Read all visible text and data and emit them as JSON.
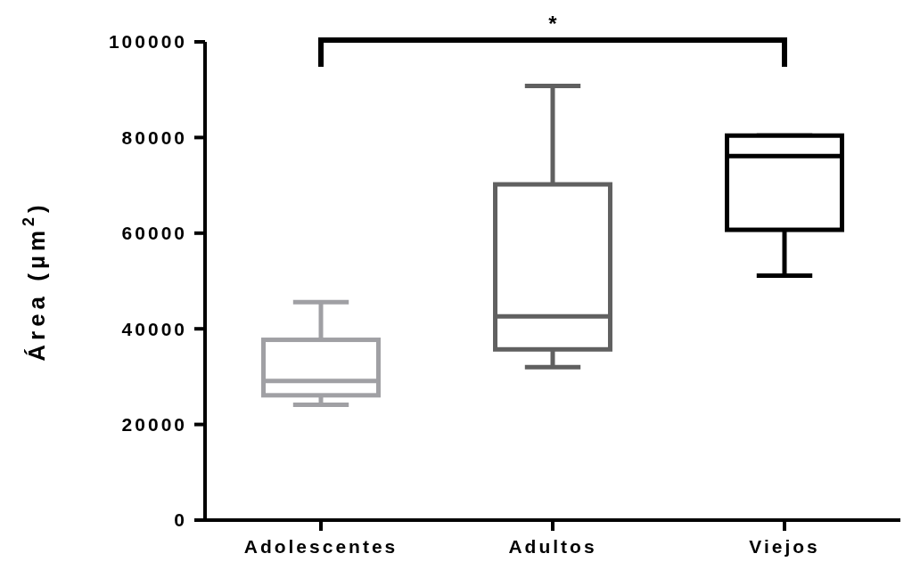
{
  "chart_data": {
    "type": "box",
    "ylabel": "Área (µm$^{2}$)",
    "categories": [
      "Adolescentes",
      "Adultos",
      "Viejos"
    ],
    "colors": [
      "#a0a0a4",
      "#606060",
      "#000000"
    ],
    "boxes": [
      {
        "low": 24100,
        "q1": 26100,
        "median": 29100,
        "q3": 37700,
        "high": 45600
      },
      {
        "low": 32000,
        "q1": 35700,
        "median": 42600,
        "q3": 70200,
        "high": 90800
      },
      {
        "low": 51100,
        "q1": 60700,
        "median": 76100,
        "q3": 80400,
        "high": 80400
      }
    ],
    "ylim": [
      0,
      100000
    ],
    "yticks": [
      0,
      20000,
      40000,
      60000,
      80000,
      100000
    ],
    "annotations": [
      "*"
    ]
  }
}
